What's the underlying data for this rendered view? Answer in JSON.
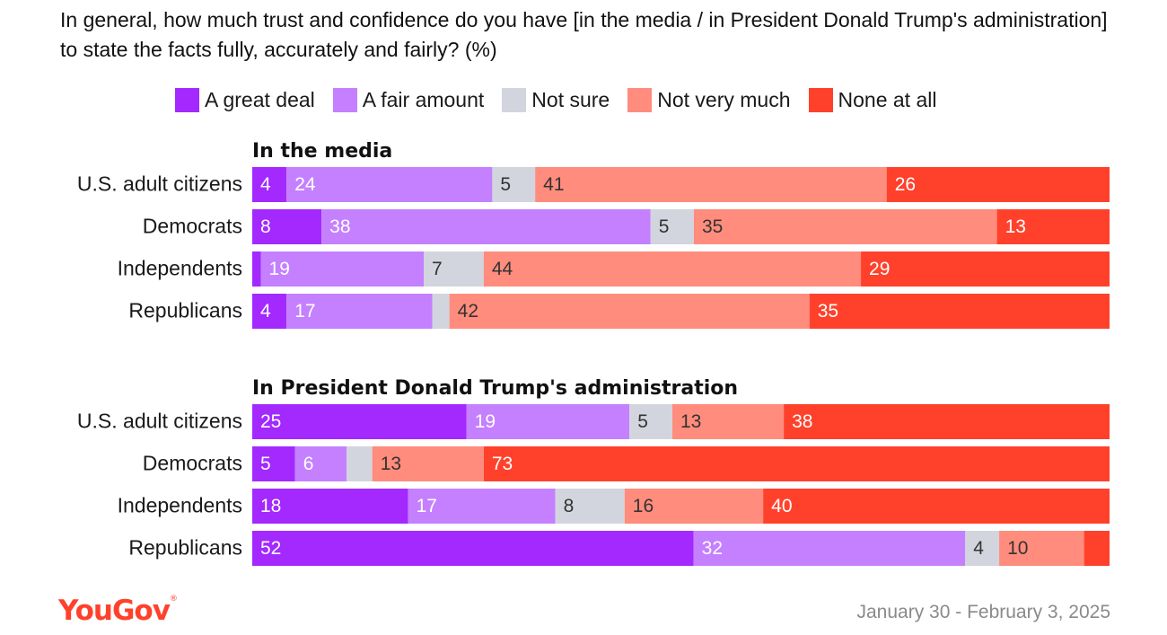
{
  "title": "In general, how much trust and confidence do you have [in the media / in President Donald Trump's administration] to state the facts fully, accurately and fairly? (%)",
  "legend": [
    {
      "label": "A great deal",
      "color": "#a329ff"
    },
    {
      "label": "A fair amount",
      "color": "#c480ff"
    },
    {
      "label": "Not sure",
      "color": "#d2d5dd"
    },
    {
      "label": "Not very much",
      "color": "#ff8c7c"
    },
    {
      "label": "None at all",
      "color": "#ff412c"
    }
  ],
  "chart_data": {
    "type": "bar",
    "orientation": "horizontal",
    "stacked": true,
    "title": "In general, how much trust and confidence do you have [in the media / in President Donald Trump's administration] to state the facts fully, accurately and fairly? (%)",
    "xlabel": "",
    "ylabel": "",
    "xlim": [
      0,
      100
    ],
    "series_names": [
      "A great deal",
      "A fair amount",
      "Not sure",
      "Not very much",
      "None at all"
    ],
    "panels": [
      {
        "heading": "In the media",
        "categories": [
          "U.S. adult citizens",
          "Democrats",
          "Independents",
          "Republicans"
        ],
        "rows": [
          {
            "values": [
              4,
              24,
              5,
              41,
              26
            ],
            "labels": [
              "4",
              "24",
              "5",
              "41",
              "26"
            ]
          },
          {
            "values": [
              8,
              38,
              5,
              35,
              13
            ],
            "labels": [
              "8",
              "38",
              "5",
              "35",
              "13"
            ]
          },
          {
            "values": [
              1,
              19,
              7,
              44,
              29
            ],
            "labels": [
              "",
              "19",
              "7",
              "44",
              "29"
            ]
          },
          {
            "values": [
              4,
              17,
              2,
              42,
              35
            ],
            "labels": [
              "4",
              "17",
              "",
              "42",
              "35"
            ]
          }
        ]
      },
      {
        "heading": "In President Donald Trump's administration",
        "categories": [
          "U.S. adult citizens",
          "Democrats",
          "Independents",
          "Republicans"
        ],
        "rows": [
          {
            "values": [
              25,
              19,
              5,
              13,
              38
            ],
            "labels": [
              "25",
              "19",
              "5",
              "13",
              "38"
            ]
          },
          {
            "values": [
              5,
              6,
              3,
              13,
              73
            ],
            "labels": [
              "5",
              "6",
              "",
              "13",
              "73"
            ]
          },
          {
            "values": [
              18,
              17,
              8,
              16,
              40
            ],
            "labels": [
              "18",
              "17",
              "8",
              "16",
              "40"
            ]
          },
          {
            "values": [
              52,
              32,
              4,
              10,
              3
            ],
            "labels": [
              "52",
              "32",
              "4",
              "10",
              ""
            ]
          }
        ]
      }
    ]
  },
  "footer": {
    "brand": "YouGov",
    "brand_mark": "®",
    "date": "January 30 - February 3, 2025"
  }
}
